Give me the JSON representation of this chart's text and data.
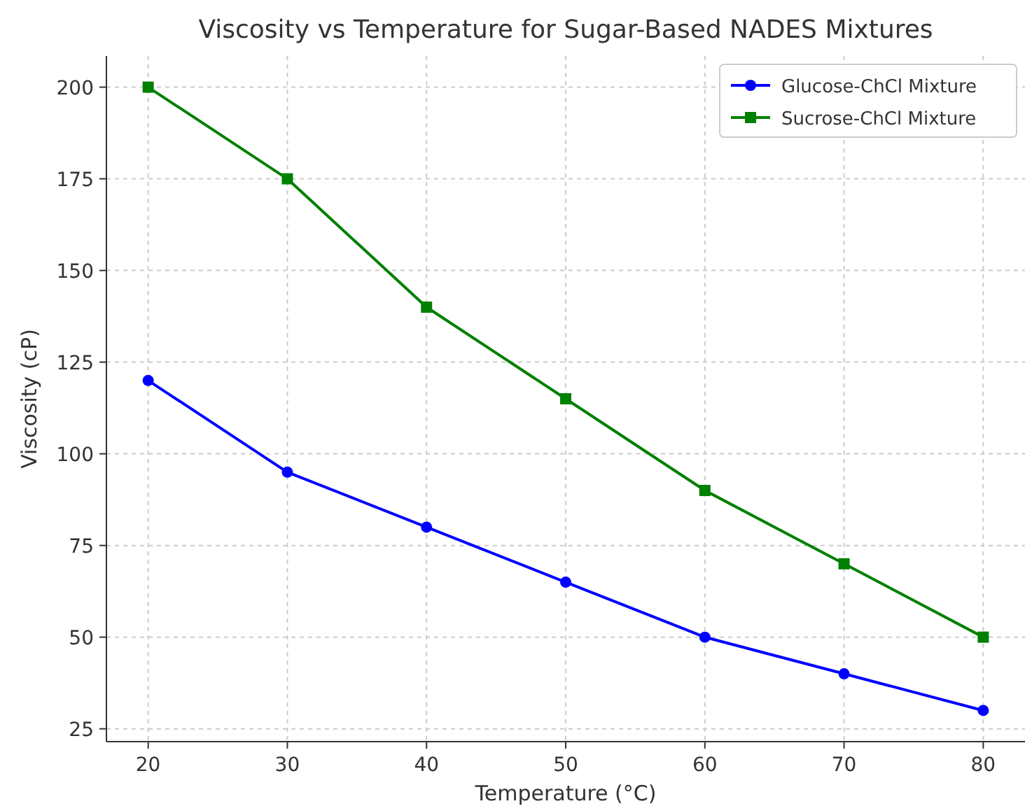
{
  "chart_data": {
    "type": "line",
    "title": "Viscosity vs Temperature for Sugar-Based NADES Mixtures",
    "xlabel": "Temperature (°C)",
    "ylabel": "Viscosity (cP)",
    "x": [
      20,
      30,
      40,
      50,
      60,
      70,
      80
    ],
    "series": [
      {
        "name": "Glucose-ChCl Mixture",
        "color": "#0000ff",
        "marker": "circle",
        "values": [
          120,
          95,
          80,
          65,
          50,
          40,
          30
        ]
      },
      {
        "name": "Sucrose-ChCl Mixture",
        "color": "#008000",
        "marker": "square",
        "values": [
          200,
          175,
          140,
          115,
          90,
          70,
          50
        ]
      }
    ],
    "xlim": [
      17,
      83
    ],
    "xticks": [
      20,
      30,
      40,
      50,
      60,
      70,
      80
    ],
    "ylim": [
      21.5,
      208.5
    ],
    "yticks": [
      25,
      50,
      75,
      100,
      125,
      150,
      175,
      200
    ],
    "grid": true,
    "legend": "top right",
    "line_style": "solid"
  }
}
